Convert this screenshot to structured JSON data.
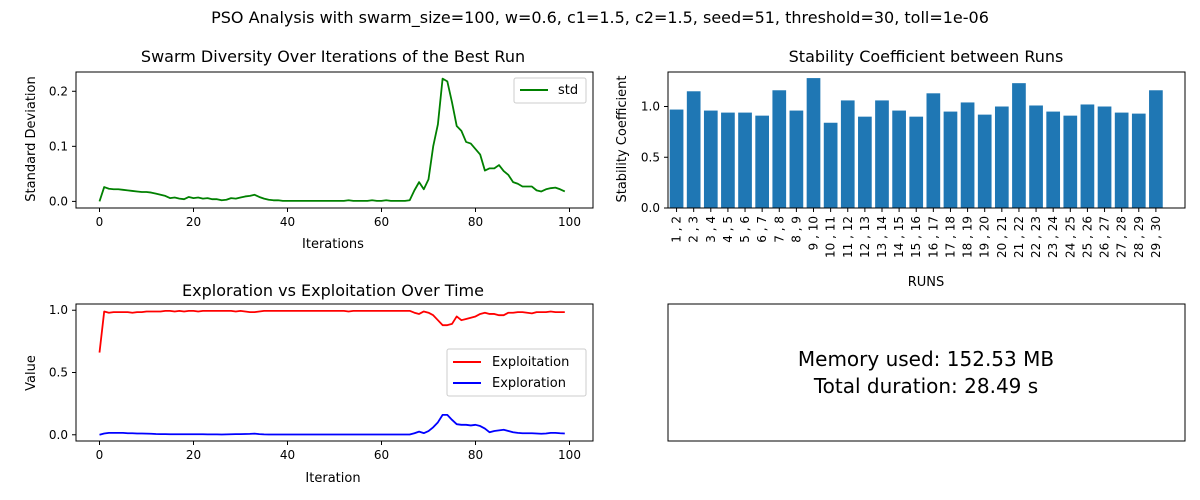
{
  "figure": {
    "suptitle": "PSO Analysis with swarm_size=100, w=0.6, c1=1.5, c2=1.5, seed=51, threshold=30, toll=1e-06"
  },
  "chart_data": [
    {
      "type": "line",
      "title": "Swarm Diversity Over Iterations of the Best Run",
      "xlabel": "Iterations",
      "ylabel": "Standard Deviation",
      "xlim": [
        -5,
        105
      ],
      "ylim": [
        -0.012,
        0.235
      ],
      "xticks": [
        0,
        20,
        40,
        60,
        80,
        100
      ],
      "xtick_labels": [
        "0",
        "20",
        "40",
        "60",
        "80",
        "100"
      ],
      "yticks": [
        0.0,
        0.1,
        0.2
      ],
      "ytick_labels": [
        "0.0",
        "0.1",
        "0.2"
      ],
      "grid": false,
      "legend": "upper-right",
      "series": [
        {
          "name": "std",
          "color": "#008000",
          "x": [
            0,
            1,
            2,
            3,
            4,
            5,
            6,
            7,
            8,
            9,
            10,
            11,
            12,
            13,
            14,
            15,
            16,
            17,
            18,
            19,
            20,
            21,
            22,
            23,
            24,
            25,
            26,
            27,
            28,
            29,
            30,
            31,
            32,
            33,
            34,
            35,
            36,
            37,
            38,
            39,
            40,
            41,
            42,
            43,
            44,
            45,
            46,
            47,
            48,
            49,
            50,
            51,
            52,
            53,
            54,
            55,
            56,
            57,
            58,
            59,
            60,
            61,
            62,
            63,
            64,
            65,
            66,
            67,
            68,
            69,
            70,
            71,
            72,
            73,
            74,
            75,
            76,
            77,
            78,
            79,
            80,
            81,
            82,
            83,
            84,
            85,
            86,
            87,
            88,
            89,
            90,
            91,
            92,
            93,
            94,
            95,
            96,
            97,
            98,
            99
          ],
          "y": [
            0.0,
            0.026,
            0.023,
            0.022,
            0.022,
            0.021,
            0.02,
            0.019,
            0.018,
            0.017,
            0.017,
            0.016,
            0.014,
            0.012,
            0.01,
            0.006,
            0.007,
            0.005,
            0.004,
            0.008,
            0.006,
            0.007,
            0.005,
            0.006,
            0.004,
            0.004,
            0.002,
            0.003,
            0.006,
            0.005,
            0.007,
            0.009,
            0.01,
            0.012,
            0.008,
            0.005,
            0.003,
            0.002,
            0.002,
            0.001,
            0.001,
            0.001,
            0.001,
            0.001,
            0.001,
            0.001,
            0.001,
            0.001,
            0.001,
            0.001,
            0.001,
            0.001,
            0.001,
            0.002,
            0.001,
            0.001,
            0.001,
            0.001,
            0.002,
            0.001,
            0.001,
            0.002,
            0.001,
            0.001,
            0.001,
            0.001,
            0.002,
            0.02,
            0.035,
            0.022,
            0.04,
            0.1,
            0.14,
            0.223,
            0.218,
            0.18,
            0.137,
            0.128,
            0.108,
            0.105,
            0.095,
            0.085,
            0.056,
            0.06,
            0.06,
            0.066,
            0.055,
            0.048,
            0.035,
            0.032,
            0.027,
            0.027,
            0.027,
            0.02,
            0.018,
            0.022,
            0.024,
            0.025,
            0.022,
            0.018
          ]
        }
      ]
    },
    {
      "type": "bar",
      "title": "Stability Coefficient between Runs",
      "xlabel": "RUNS",
      "ylabel": "Stability Coefficient",
      "ylim": [
        0,
        1.34
      ],
      "yticks": [
        0.0,
        0.5,
        1.0
      ],
      "ytick_labels": [
        "0.0",
        "0.5",
        "1.0"
      ],
      "grid": false,
      "color": "#1f77b4",
      "categories": [
        "1 , 2",
        "2 , 3",
        "3 , 4",
        "4 , 5",
        "5 , 6",
        "6 , 7",
        "7 , 8",
        "8 , 9",
        "9 , 10",
        "10 , 11",
        "11 , 12",
        "12 , 13",
        "13 , 14",
        "14 , 15",
        "15 , 16",
        "16 , 17",
        "17 , 18",
        "18 , 19",
        "19 , 20",
        "20 , 21",
        "21 , 22",
        "22 , 23",
        "23 , 24",
        "24 , 25",
        "25 , 26",
        "26 , 27",
        "27 , 28",
        "28 , 29",
        "29 , 30"
      ],
      "values": [
        0.97,
        1.15,
        0.96,
        0.94,
        0.94,
        0.91,
        1.16,
        0.96,
        1.28,
        0.84,
        1.06,
        0.9,
        1.06,
        0.96,
        0.9,
        1.13,
        0.95,
        1.04,
        0.92,
        1.0,
        1.23,
        1.01,
        0.95,
        0.91,
        1.02,
        1.0,
        0.94,
        0.93,
        1.16
      ]
    },
    {
      "type": "line",
      "title": "Exploration vs Exploitation Over Time",
      "xlabel": "Iteration",
      "ylabel": "Value",
      "xlim": [
        -5,
        105
      ],
      "ylim": [
        -0.05,
        1.05
      ],
      "xticks": [
        0,
        20,
        40,
        60,
        80,
        100
      ],
      "xtick_labels": [
        "0",
        "20",
        "40",
        "60",
        "80",
        "100"
      ],
      "yticks": [
        0.0,
        0.5,
        1.0
      ],
      "ytick_labels": [
        "0.0",
        "0.5",
        "1.0"
      ],
      "grid": false,
      "legend": "center-right",
      "x": [
        0,
        1,
        2,
        3,
        4,
        5,
        6,
        7,
        8,
        9,
        10,
        11,
        12,
        13,
        14,
        15,
        16,
        17,
        18,
        19,
        20,
        21,
        22,
        23,
        24,
        25,
        26,
        27,
        28,
        29,
        30,
        31,
        32,
        33,
        34,
        35,
        36,
        37,
        38,
        39,
        40,
        41,
        42,
        43,
        44,
        45,
        46,
        47,
        48,
        49,
        50,
        51,
        52,
        53,
        54,
        55,
        56,
        57,
        58,
        59,
        60,
        61,
        62,
        63,
        64,
        65,
        66,
        67,
        68,
        69,
        70,
        71,
        72,
        73,
        74,
        75,
        76,
        77,
        78,
        79,
        80,
        81,
        82,
        83,
        84,
        85,
        86,
        87,
        88,
        89,
        90,
        91,
        92,
        93,
        94,
        95,
        96,
        97,
        98,
        99
      ],
      "series": [
        {
          "name": "Exploitation",
          "color": "#ff0000",
          "values": [
            0.66,
            0.99,
            0.98,
            0.985,
            0.985,
            0.985,
            0.985,
            0.98,
            0.985,
            0.985,
            0.99,
            0.99,
            0.99,
            0.99,
            0.995,
            0.995,
            0.99,
            0.995,
            0.99,
            0.995,
            0.995,
            0.99,
            0.995,
            0.995,
            0.995,
            0.995,
            0.995,
            0.995,
            0.995,
            0.99,
            0.995,
            0.99,
            0.985,
            0.985,
            0.99,
            0.995,
            0.995,
            0.995,
            0.995,
            0.995,
            0.995,
            0.995,
            0.995,
            0.995,
            0.995,
            0.995,
            0.995,
            0.995,
            0.995,
            0.995,
            0.995,
            0.995,
            0.995,
            0.99,
            0.995,
            0.995,
            0.995,
            0.995,
            0.995,
            0.995,
            0.995,
            0.995,
            0.995,
            0.995,
            0.995,
            0.995,
            0.995,
            0.98,
            0.97,
            0.99,
            0.98,
            0.96,
            0.92,
            0.88,
            0.88,
            0.89,
            0.95,
            0.92,
            0.93,
            0.94,
            0.95,
            0.97,
            0.98,
            0.97,
            0.97,
            0.96,
            0.96,
            0.98,
            0.98,
            0.985,
            0.985,
            0.98,
            0.975,
            0.985,
            0.985,
            0.985,
            0.99,
            0.985,
            0.985,
            0.985
          ]
        },
        {
          "name": "Exploration",
          "color": "#0000ff",
          "values": [
            0.0,
            0.01,
            0.015,
            0.015,
            0.015,
            0.015,
            0.012,
            0.012,
            0.01,
            0.01,
            0.009,
            0.008,
            0.006,
            0.005,
            0.005,
            0.004,
            0.004,
            0.004,
            0.004,
            0.004,
            0.004,
            0.004,
            0.004,
            0.003,
            0.003,
            0.003,
            0.002,
            0.003,
            0.004,
            0.005,
            0.005,
            0.006,
            0.007,
            0.009,
            0.005,
            0.003,
            0.002,
            0.002,
            0.002,
            0.002,
            0.002,
            0.002,
            0.002,
            0.002,
            0.002,
            0.002,
            0.002,
            0.002,
            0.002,
            0.002,
            0.002,
            0.002,
            0.002,
            0.002,
            0.002,
            0.002,
            0.002,
            0.002,
            0.002,
            0.002,
            0.002,
            0.002,
            0.002,
            0.002,
            0.002,
            0.002,
            0.002,
            0.012,
            0.025,
            0.013,
            0.03,
            0.06,
            0.1,
            0.16,
            0.16,
            0.12,
            0.085,
            0.08,
            0.08,
            0.075,
            0.08,
            0.07,
            0.05,
            0.02,
            0.03,
            0.035,
            0.04,
            0.03,
            0.02,
            0.015,
            0.012,
            0.012,
            0.012,
            0.01,
            0.008,
            0.01,
            0.015,
            0.015,
            0.012,
            0.01
          ]
        }
      ]
    }
  ],
  "info_panel": {
    "line1": "Memory used: 152.53 MB",
    "line2": "Total duration: 28.49 s"
  }
}
